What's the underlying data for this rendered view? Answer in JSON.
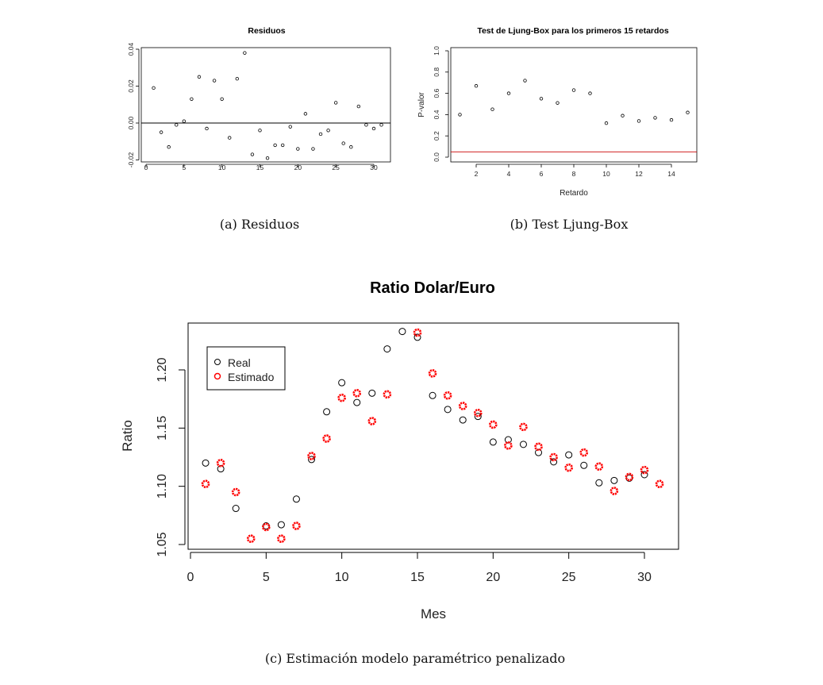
{
  "chart_data": [
    {
      "type": "scatter",
      "title": "Residuos",
      "caption": "(a) Residuos",
      "xlabel": "",
      "ylabel": "",
      "xlim": [
        0,
        32
      ],
      "ylim": [
        -0.021,
        0.04
      ],
      "xticks": [
        0,
        5,
        10,
        15,
        20,
        25,
        30
      ],
      "yticks": [
        -0.02,
        0.0,
        0.02,
        0.04
      ],
      "ytick_labels": [
        "-0.02",
        "0.00",
        "0.02",
        "0.04"
      ],
      "hline": 0,
      "x": [
        1,
        2,
        3,
        4,
        5,
        6,
        7,
        8,
        9,
        10,
        11,
        12,
        13,
        14,
        15,
        16,
        17,
        18,
        19,
        20,
        21,
        22,
        23,
        24,
        25,
        26,
        27,
        28,
        29,
        30,
        31
      ],
      "values": [
        0.019,
        -0.005,
        -0.013,
        -0.001,
        0.001,
        0.013,
        0.025,
        -0.003,
        0.023,
        0.013,
        -0.008,
        0.024,
        0.038,
        -0.017,
        -0.004,
        -0.019,
        -0.012,
        -0.012,
        -0.002,
        -0.014,
        0.005,
        -0.014,
        -0.006,
        -0.004,
        0.011,
        -0.011,
        -0.013,
        0.009,
        -0.001,
        -0.003,
        -0.001
      ]
    },
    {
      "type": "scatter",
      "title": "Test de Ljung-Box para los primeros 15 retardos",
      "caption": "(b) Test Ljung-Box",
      "xlabel": "Retardo",
      "ylabel": "P-valor",
      "xlim": [
        0.6,
        15.5
      ],
      "ylim": [
        0,
        1.0
      ],
      "xticks": [
        2,
        4,
        6,
        8,
        10,
        12,
        14
      ],
      "yticks": [
        0.0,
        0.2,
        0.4,
        0.6,
        0.8,
        1.0
      ],
      "ytick_labels": [
        "0.0",
        "0.2",
        "0.4",
        "0.6",
        "0.8",
        "1.0"
      ],
      "hline": 0.05,
      "hline_color": "#cc0000",
      "x": [
        1,
        2,
        3,
        4,
        5,
        6,
        7,
        8,
        9,
        10,
        11,
        12,
        13,
        14,
        15
      ],
      "values": [
        0.4,
        0.67,
        0.45,
        0.6,
        0.72,
        0.55,
        0.51,
        0.63,
        0.6,
        0.32,
        0.39,
        0.34,
        0.37,
        0.35,
        0.42
      ]
    },
    {
      "type": "scatter",
      "title": "Ratio Dolar/Euro",
      "caption": "(c) Estimación modelo paramétrico penalizado",
      "xlabel": "Mes",
      "ylabel": "Ratio",
      "xlim": [
        0,
        32
      ],
      "ylim": [
        1.045,
        1.24
      ],
      "xticks": [
        0,
        5,
        10,
        15,
        20,
        25,
        30
      ],
      "yticks": [
        1.05,
        1.1,
        1.15,
        1.2
      ],
      "ytick_labels": [
        "1.05",
        "1.10",
        "1.15",
        "1.20"
      ],
      "legend_position": "top-left",
      "x": [
        1,
        2,
        3,
        4,
        5,
        6,
        7,
        8,
        9,
        10,
        11,
        12,
        13,
        14,
        15,
        16,
        17,
        18,
        19,
        20,
        21,
        22,
        23,
        24,
        25,
        26,
        27,
        28,
        29,
        30,
        31
      ],
      "series": [
        {
          "name": "Real",
          "color": "#000000",
          "values": [
            1.12,
            1.115,
            1.081,
            null,
            1.066,
            1.067,
            1.089,
            1.123,
            1.164,
            1.189,
            1.172,
            1.18,
            1.218,
            1.233,
            1.228,
            1.178,
            1.166,
            1.157,
            1.16,
            1.138,
            1.14,
            1.136,
            1.129,
            1.121,
            1.127,
            1.118,
            1.103,
            1.105,
            1.107,
            1.11,
            null
          ]
        },
        {
          "name": "Estimado",
          "color": "#ff0000",
          "values": [
            1.102,
            1.12,
            1.095,
            1.055,
            1.065,
            1.055,
            1.066,
            1.126,
            1.141,
            1.176,
            1.18,
            1.156,
            1.179,
            null,
            1.232,
            1.197,
            1.178,
            1.169,
            1.163,
            1.153,
            1.135,
            1.151,
            1.134,
            1.125,
            1.116,
            1.129,
            1.117,
            1.096,
            1.108,
            1.114,
            1.102
          ]
        }
      ]
    }
  ]
}
